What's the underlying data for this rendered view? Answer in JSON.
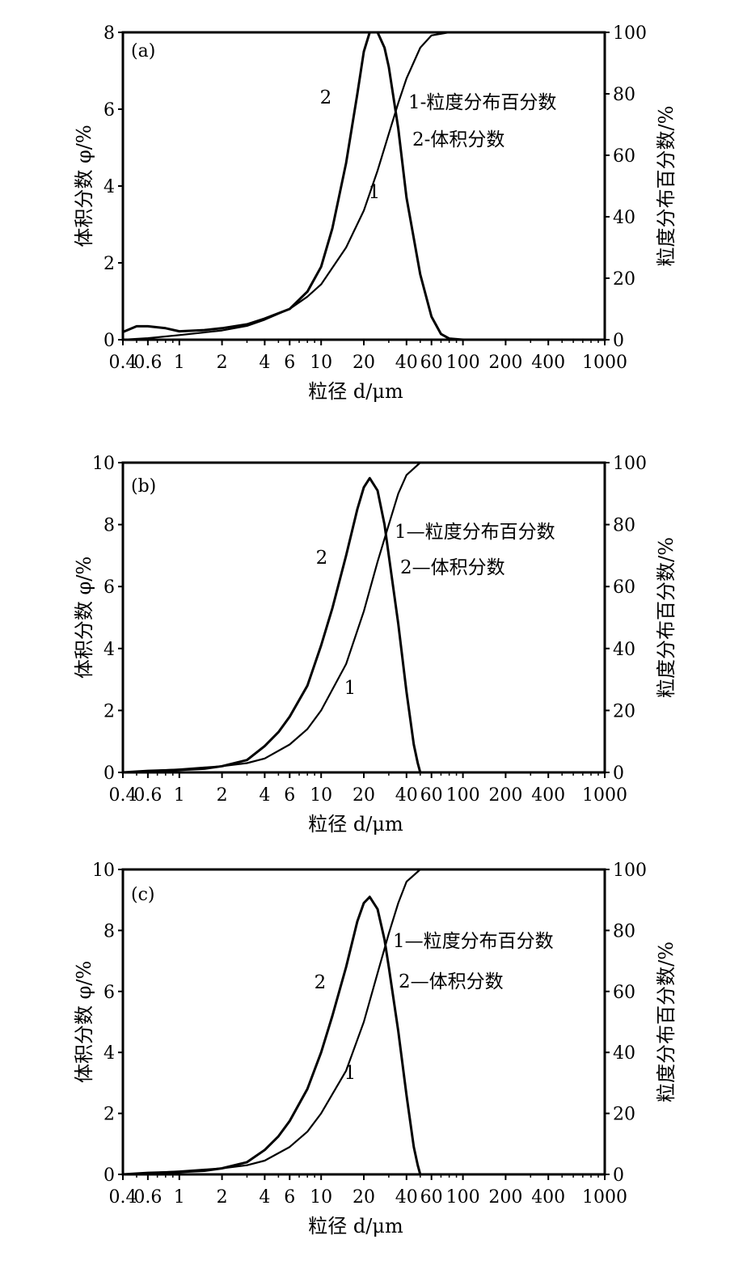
{
  "chart_data": [
    {
      "type": "line",
      "panel_label": "(a)",
      "xscale": "log",
      "x_ticks": [
        "0.4",
        "0.6",
        "1",
        "2",
        "4",
        "6",
        "10",
        "20",
        "40",
        "60",
        "100",
        "200",
        "400",
        "1000"
      ],
      "xlabel": "粒径 d/μm",
      "ylabel_left": "体积分数 φ/%",
      "ylabel_right": "粒度分布百分数/%",
      "ylim_left": [
        0,
        8
      ],
      "yticks_left": [
        "0",
        "2",
        "4",
        "6",
        "8"
      ],
      "ylim_right": [
        0,
        100
      ],
      "yticks_right": [
        "0",
        "20",
        "40",
        "60",
        "80",
        "100"
      ],
      "legend": [
        "1-粒度分布百分数",
        "2-体积分数"
      ],
      "curve_labels": [
        "1",
        "2"
      ],
      "series": [
        {
          "name": "1-粒度分布百分数",
          "axis": "right",
          "x": [
            0.4,
            0.6,
            1,
            2,
            3,
            4,
            6,
            8,
            10,
            15,
            20,
            25,
            30,
            35,
            40,
            50,
            60,
            80,
            100,
            200,
            1000
          ],
          "y": [
            0,
            0.5,
            1.5,
            3,
            4.5,
            6.5,
            10,
            14,
            18,
            30,
            42,
            55,
            67,
            77,
            85,
            95,
            99,
            100,
            100,
            100,
            100
          ]
        },
        {
          "name": "2-体积分数",
          "axis": "left",
          "x": [
            0.4,
            0.5,
            0.6,
            0.8,
            1,
            1.5,
            2,
            3,
            4,
            6,
            8,
            10,
            12,
            15,
            18,
            20,
            22,
            25,
            28,
            30,
            35,
            40,
            50,
            60,
            70,
            80,
            100
          ],
          "y": [
            0.2,
            0.35,
            0.35,
            0.3,
            0.22,
            0.25,
            0.3,
            0.4,
            0.55,
            0.8,
            1.25,
            1.9,
            2.9,
            4.6,
            6.4,
            7.5,
            8.0,
            8.0,
            7.6,
            7.1,
            5.5,
            3.7,
            1.7,
            0.6,
            0.15,
            0.03,
            0
          ]
        }
      ]
    },
    {
      "type": "line",
      "panel_label": "(b)",
      "xscale": "log",
      "x_ticks": [
        "0.4",
        "0.6",
        "1",
        "2",
        "4",
        "6",
        "10",
        "20",
        "40",
        "60",
        "100",
        "200",
        "400",
        "1000"
      ],
      "xlabel": "粒径 d/μm",
      "ylabel_left": "体积分数 φ/%",
      "ylabel_right": "粒度分布百分数/%",
      "ylim_left": [
        0,
        10
      ],
      "yticks_left": [
        "0",
        "2",
        "4",
        "6",
        "8",
        "10"
      ],
      "ylim_right": [
        0,
        100
      ],
      "yticks_right": [
        "0",
        "20",
        "40",
        "60",
        "80",
        "100"
      ],
      "legend": [
        "1—粒度分布百分数",
        "2—体积分数"
      ],
      "curve_labels": [
        "1",
        "2"
      ],
      "series": [
        {
          "name": "1—粒度分布百分数",
          "axis": "right",
          "x": [
            0.4,
            1,
            2,
            3,
            4,
            6,
            8,
            10,
            15,
            20,
            25,
            30,
            35,
            40,
            50,
            60,
            100,
            1000
          ],
          "y": [
            0,
            1,
            2,
            3,
            4.5,
            9,
            14,
            20,
            35,
            52,
            68,
            80,
            90,
            96,
            100,
            100,
            100,
            100
          ]
        },
        {
          "name": "2—体积分数",
          "axis": "left",
          "x": [
            0.4,
            0.6,
            1,
            1.5,
            2,
            3,
            4,
            5,
            6,
            8,
            10,
            12,
            15,
            18,
            20,
            22,
            25,
            28,
            30,
            35,
            40,
            45,
            48,
            50
          ],
          "y": [
            0,
            0.05,
            0.08,
            0.12,
            0.2,
            0.4,
            0.85,
            1.3,
            1.8,
            2.8,
            4.1,
            5.3,
            7.0,
            8.5,
            9.2,
            9.5,
            9.1,
            8.0,
            7.0,
            4.8,
            2.6,
            0.9,
            0.3,
            0
          ]
        }
      ]
    },
    {
      "type": "line",
      "panel_label": "(c)",
      "xscale": "log",
      "x_ticks": [
        "0.4",
        "0.6",
        "1",
        "2",
        "4",
        "6",
        "10",
        "20",
        "40",
        "60",
        "100",
        "200",
        "400",
        "1000"
      ],
      "xlabel": "粒径 d/μm",
      "ylabel_left": "体积分数 φ/%",
      "ylabel_right": "粒度分布百分数/%",
      "ylim_left": [
        0,
        10
      ],
      "yticks_left": [
        "0",
        "2",
        "4",
        "6",
        "8",
        "10"
      ],
      "ylim_right": [
        0,
        100
      ],
      "yticks_right": [
        "0",
        "20",
        "40",
        "60",
        "80",
        "100"
      ],
      "legend": [
        "1—粒度分布百分数",
        "2—体积分数"
      ],
      "curve_labels": [
        "1",
        "2"
      ],
      "series": [
        {
          "name": "1—粒度分布百分数",
          "axis": "right",
          "x": [
            0.4,
            1,
            2,
            3,
            4,
            6,
            8,
            10,
            15,
            20,
            25,
            30,
            35,
            40,
            50,
            60,
            100,
            1000
          ],
          "y": [
            0,
            1,
            2,
            3,
            4.5,
            9,
            14,
            20,
            34,
            50,
            66,
            79,
            89,
            96,
            100,
            100,
            100,
            100
          ]
        },
        {
          "name": "2—体积分数",
          "axis": "left",
          "x": [
            0.4,
            0.6,
            1,
            1.5,
            2,
            3,
            4,
            5,
            6,
            8,
            10,
            12,
            15,
            18,
            20,
            22,
            25,
            28,
            30,
            35,
            40,
            45,
            48,
            50
          ],
          "y": [
            0,
            0.05,
            0.08,
            0.12,
            0.2,
            0.4,
            0.8,
            1.25,
            1.75,
            2.8,
            4.0,
            5.2,
            6.8,
            8.3,
            8.9,
            9.1,
            8.7,
            7.7,
            6.8,
            4.7,
            2.6,
            0.9,
            0.3,
            0
          ]
        }
      ]
    }
  ]
}
